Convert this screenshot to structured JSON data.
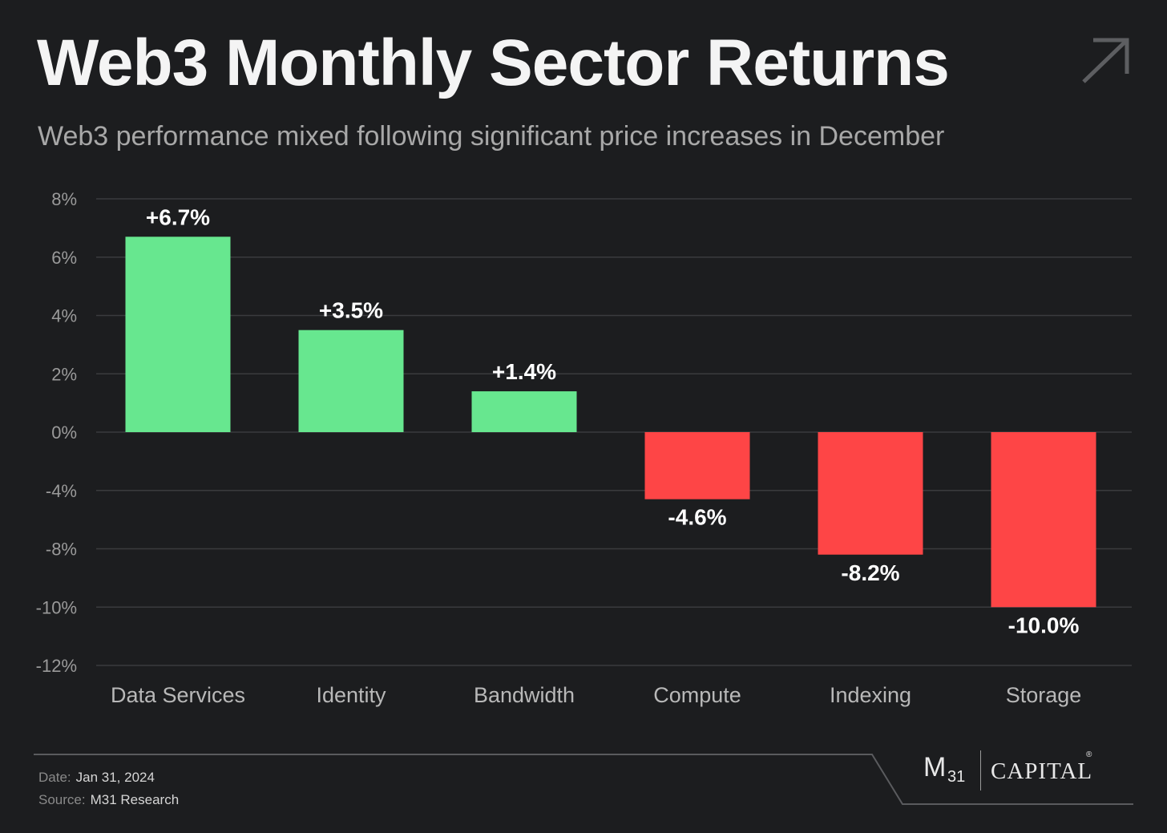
{
  "header": {
    "title": "Web3 Monthly Sector Returns",
    "subtitle": "Web3 performance mixed following significant price increases in December",
    "icon": "arrow-up-right-icon"
  },
  "chart_data": {
    "type": "bar",
    "categories": [
      "Data Services",
      "Identity",
      "Bandwidth",
      "Compute",
      "Indexing",
      "Storage"
    ],
    "values": [
      6.7,
      3.5,
      1.4,
      -4.6,
      -8.2,
      -10.0
    ],
    "value_labels": [
      "+6.7%",
      "+3.5%",
      "+1.4%",
      "-4.6%",
      "-8.2%",
      "-10.0%"
    ],
    "y_ticks": [
      8,
      6,
      4,
      2,
      0,
      -4,
      -8,
      -10,
      -12
    ],
    "y_tick_labels": [
      "8%",
      "6%",
      "4%",
      "2%",
      "0%",
      "-4%",
      "-8%",
      "-10%",
      "-12%"
    ],
    "grid": true,
    "colors": {
      "positive": "#67e78f",
      "negative": "#fe4546",
      "grid": "#3a3b3e"
    }
  },
  "footer": {
    "date_label": "Date:",
    "date_value": "Jan 31, 2024",
    "source_label": "Source:",
    "source_value": "M31 Research"
  },
  "logo": {
    "m": "M",
    "sub": "31",
    "name": "CAPITAL",
    "reg": "®"
  }
}
